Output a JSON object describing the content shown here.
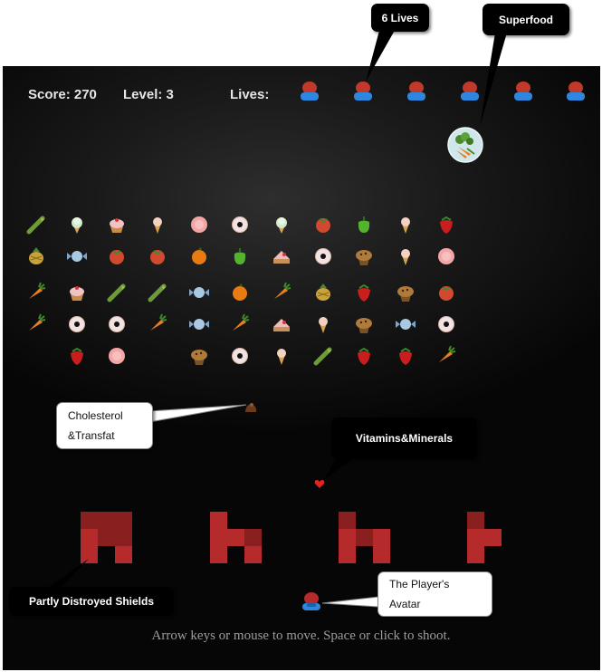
{
  "hud": {
    "score_label": "Score: 270",
    "level_label": "Level: 3",
    "lives_label": "Lives:",
    "lives_count": 6
  },
  "callouts": {
    "lives": "6 Lives",
    "superfood": "Superfood",
    "cholesterol_line1": "Cholesterol",
    "cholesterol_line2": "&Transfat",
    "vitamins": "Vitamins&Minerals",
    "shields": "Partly Distroyed Shields",
    "player_line1": "The Player's",
    "player_line2": "Avatar"
  },
  "instructions": "Arrow keys or mouse to move. Space or click to shoot.",
  "enemy_grid": [
    [
      "asparagus",
      "icecream",
      "cupcake",
      "cone",
      "bun",
      "donut",
      "icecream",
      "tomato",
      "pepper",
      "cone",
      "strawberry"
    ],
    [
      "pineapple",
      "candy",
      "tomato",
      "tomato",
      "orange",
      "pepper",
      "cake",
      "donut",
      "muffin",
      "cone",
      "bun"
    ],
    [
      "carrot",
      "cupcake",
      "asparagus",
      "asparagus",
      "candy",
      "orange",
      "carrot",
      "pineapple",
      "strawberry",
      "muffin",
      "tomato"
    ],
    [
      "carrot",
      "donut",
      "donut",
      "carrot",
      "candy",
      "carrot",
      "cake",
      "cone",
      "muffin",
      "candy",
      "donut"
    ],
    [
      "",
      "strawberry",
      "bun",
      "",
      "muffin",
      "donut",
      "cone",
      "asparagus",
      "strawberry",
      "strawberry",
      "carrot"
    ]
  ],
  "colors": {
    "background": "#0b0b0b",
    "hud_text": "#e6e6e6",
    "shield": "#b52a2a",
    "player_head": "#c0392b",
    "player_body": "#2e86de"
  }
}
